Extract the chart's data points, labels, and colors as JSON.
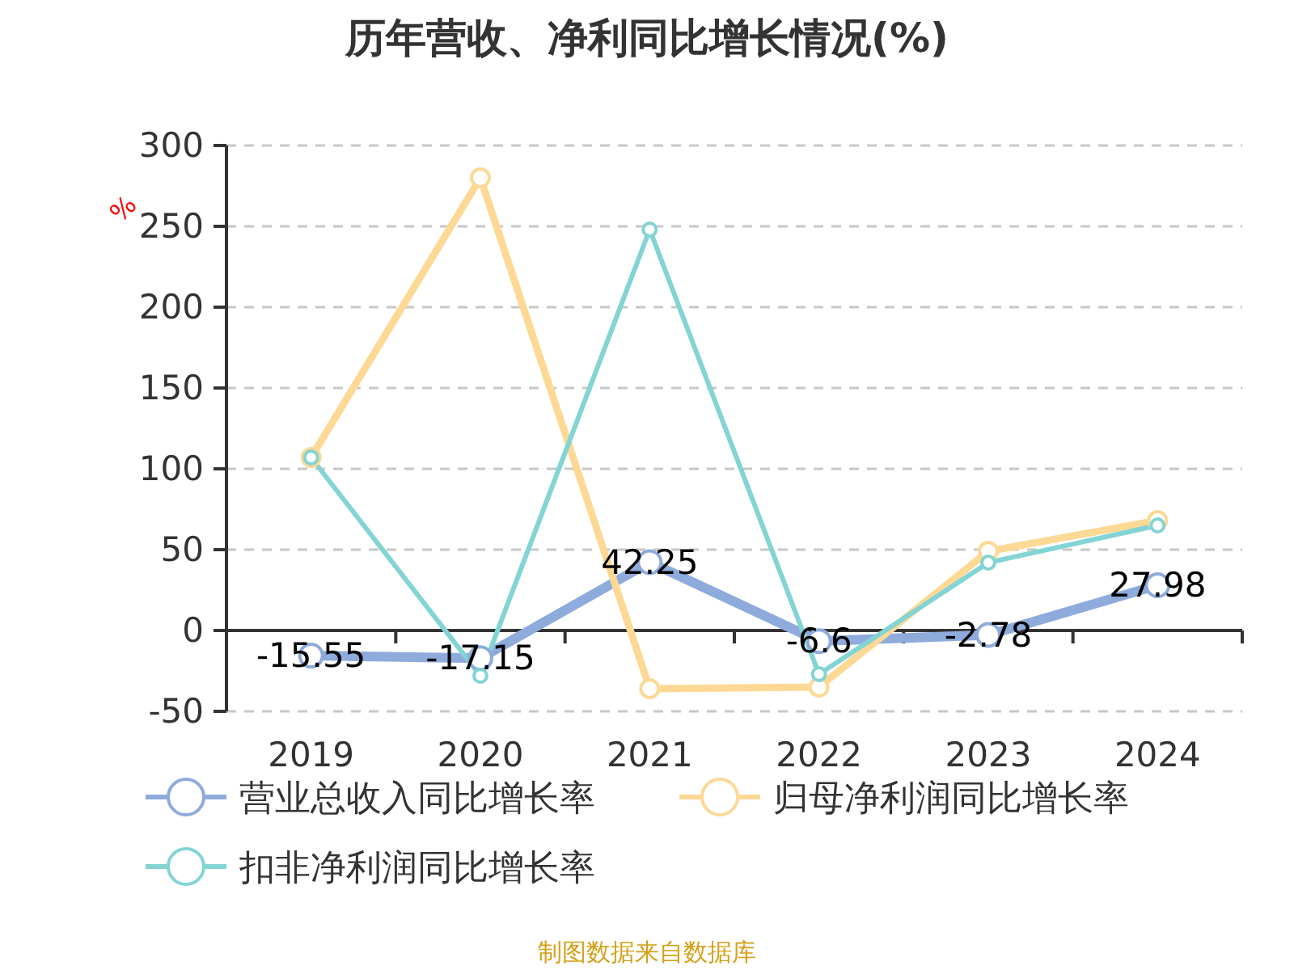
{
  "chart_data": {
    "type": "line",
    "title": "历年营收、净利同比增长情况(%)",
    "ylabel": "%",
    "categories": [
      "2019",
      "2020",
      "2021",
      "2022",
      "2023",
      "2024"
    ],
    "series": [
      {
        "name": "营业总收入同比增长率",
        "color": "#8eabdc",
        "values": [
          -15.55,
          -17.15,
          42.25,
          -6.6,
          -2.78,
          27.98
        ],
        "value_labels": [
          "-15.55",
          "-17.15",
          "42.25",
          "-6.6",
          "-2.78",
          "27.98"
        ]
      },
      {
        "name": "归母净利润同比增长率",
        "color": "#fdd995",
        "values": [
          107,
          280,
          -36,
          -35,
          49,
          68
        ]
      },
      {
        "name": "扣非净利润同比增长率",
        "color": "#83d4d4",
        "values": [
          107,
          -28,
          248,
          -27,
          42,
          65
        ]
      }
    ],
    "ylim": [
      -50,
      300
    ],
    "yticks": [
      -50,
      0,
      50,
      100,
      150,
      200,
      250,
      300
    ],
    "grid": "y",
    "legend": "bottom",
    "marker": "circle",
    "line_style": "solid",
    "annotations": [
      "制图数据来自数据库"
    ]
  }
}
